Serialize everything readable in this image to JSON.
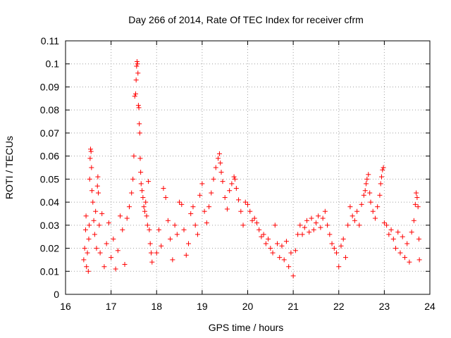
{
  "chart_data": {
    "type": "scatter",
    "title": "Day 266 of 2014, Rate Of TEC Index for receiver cfrm",
    "xlabel": "GPS time / hours",
    "ylabel": "ROTI / TECUs",
    "xlim": [
      16,
      24
    ],
    "ylim": [
      0,
      0.11
    ],
    "x_ticks": [
      "16",
      "17",
      "18",
      "19",
      "20",
      "21",
      "22",
      "23",
      "24"
    ],
    "y_ticks": [
      "0",
      "0.01",
      "0.02",
      "0.03",
      "0.04",
      "0.05",
      "0.06",
      "0.07",
      "0.08",
      "0.09",
      "0.1",
      "0.11"
    ],
    "grid": true,
    "marker": "+",
    "color": "#ff0000",
    "series": [
      {
        "name": "ROTI",
        "points": [
          [
            16.4,
            0.015
          ],
          [
            16.42,
            0.02
          ],
          [
            16.44,
            0.028
          ],
          [
            16.45,
            0.034
          ],
          [
            16.46,
            0.012
          ],
          [
            16.48,
            0.018
          ],
          [
            16.5,
            0.01
          ],
          [
            16.51,
            0.024
          ],
          [
            16.52,
            0.03
          ],
          [
            16.53,
            0.05
          ],
          [
            16.54,
            0.059
          ],
          [
            16.55,
            0.063
          ],
          [
            16.56,
            0.062
          ],
          [
            16.57,
            0.055
          ],
          [
            16.58,
            0.045
          ],
          [
            16.6,
            0.04
          ],
          [
            16.62,
            0.032
          ],
          [
            16.64,
            0.026
          ],
          [
            16.66,
            0.036
          ],
          [
            16.68,
            0.02
          ],
          [
            16.7,
            0.047
          ],
          [
            16.71,
            0.051
          ],
          [
            16.72,
            0.044
          ],
          [
            16.74,
            0.03
          ],
          [
            16.76,
            0.018
          ],
          [
            16.8,
            0.035
          ],
          [
            16.85,
            0.012
          ],
          [
            16.9,
            0.022
          ],
          [
            16.95,
            0.031
          ],
          [
            17.0,
            0.016
          ],
          [
            17.05,
            0.024
          ],
          [
            17.1,
            0.011
          ],
          [
            17.15,
            0.019
          ],
          [
            17.2,
            0.034
          ],
          [
            17.25,
            0.028
          ],
          [
            17.3,
            0.013
          ],
          [
            17.35,
            0.033
          ],
          [
            17.4,
            0.038
          ],
          [
            17.45,
            0.044
          ],
          [
            17.48,
            0.05
          ],
          [
            17.5,
            0.06
          ],
          [
            17.52,
            0.086
          ],
          [
            17.54,
            0.087
          ],
          [
            17.55,
            0.093
          ],
          [
            17.56,
            0.099
          ],
          [
            17.57,
            0.101
          ],
          [
            17.58,
            0.1
          ],
          [
            17.59,
            0.096
          ],
          [
            17.6,
            0.082
          ],
          [
            17.61,
            0.081
          ],
          [
            17.62,
            0.074
          ],
          [
            17.63,
            0.07
          ],
          [
            17.64,
            0.059
          ],
          [
            17.65,
            0.053
          ],
          [
            17.66,
            0.048
          ],
          [
            17.68,
            0.045
          ],
          [
            17.7,
            0.042
          ],
          [
            17.72,
            0.038
          ],
          [
            17.74,
            0.036
          ],
          [
            17.76,
            0.04
          ],
          [
            17.78,
            0.034
          ],
          [
            17.8,
            0.03
          ],
          [
            17.82,
            0.049
          ],
          [
            17.84,
            0.028
          ],
          [
            17.86,
            0.022
          ],
          [
            17.88,
            0.018
          ],
          [
            17.9,
            0.014
          ],
          [
            18.0,
            0.018
          ],
          [
            18.05,
            0.028
          ],
          [
            18.1,
            0.021
          ],
          [
            18.15,
            0.046
          ],
          [
            18.2,
            0.042
          ],
          [
            18.25,
            0.032
          ],
          [
            18.3,
            0.024
          ],
          [
            18.35,
            0.015
          ],
          [
            18.4,
            0.03
          ],
          [
            18.45,
            0.026
          ],
          [
            18.5,
            0.04
          ],
          [
            18.55,
            0.039
          ],
          [
            18.6,
            0.028
          ],
          [
            18.65,
            0.017
          ],
          [
            18.7,
            0.022
          ],
          [
            18.75,
            0.035
          ],
          [
            18.8,
            0.038
          ],
          [
            18.85,
            0.03
          ],
          [
            18.9,
            0.026
          ],
          [
            18.95,
            0.043
          ],
          [
            19.0,
            0.048
          ],
          [
            19.05,
            0.036
          ],
          [
            19.1,
            0.031
          ],
          [
            19.15,
            0.038
          ],
          [
            19.2,
            0.044
          ],
          [
            19.25,
            0.05
          ],
          [
            19.3,
            0.055
          ],
          [
            19.35,
            0.059
          ],
          [
            19.38,
            0.061
          ],
          [
            19.4,
            0.057
          ],
          [
            19.42,
            0.053
          ],
          [
            19.45,
            0.049
          ],
          [
            19.5,
            0.042
          ],
          [
            19.55,
            0.037
          ],
          [
            19.6,
            0.045
          ],
          [
            19.65,
            0.048
          ],
          [
            19.7,
            0.051
          ],
          [
            19.72,
            0.05
          ],
          [
            19.75,
            0.046
          ],
          [
            19.8,
            0.041
          ],
          [
            19.85,
            0.036
          ],
          [
            19.9,
            0.03
          ],
          [
            19.95,
            0.04
          ],
          [
            20.0,
            0.039
          ],
          [
            20.05,
            0.036
          ],
          [
            20.1,
            0.032
          ],
          [
            20.15,
            0.033
          ],
          [
            20.2,
            0.031
          ],
          [
            20.25,
            0.028
          ],
          [
            20.3,
            0.025
          ],
          [
            20.35,
            0.026
          ],
          [
            20.4,
            0.022
          ],
          [
            20.45,
            0.024
          ],
          [
            20.5,
            0.02
          ],
          [
            20.55,
            0.018
          ],
          [
            20.6,
            0.03
          ],
          [
            20.65,
            0.022
          ],
          [
            20.7,
            0.016
          ],
          [
            20.75,
            0.021
          ],
          [
            20.8,
            0.015
          ],
          [
            20.85,
            0.023
          ],
          [
            20.9,
            0.012
          ],
          [
            20.95,
            0.018
          ],
          [
            21.0,
            0.008
          ],
          [
            21.05,
            0.019
          ],
          [
            21.1,
            0.026
          ],
          [
            21.15,
            0.03
          ],
          [
            21.2,
            0.026
          ],
          [
            21.25,
            0.029
          ],
          [
            21.3,
            0.032
          ],
          [
            21.35,
            0.027
          ],
          [
            21.4,
            0.033
          ],
          [
            21.45,
            0.028
          ],
          [
            21.5,
            0.031
          ],
          [
            21.55,
            0.034
          ],
          [
            21.6,
            0.029
          ],
          [
            21.65,
            0.033
          ],
          [
            21.7,
            0.036
          ],
          [
            21.75,
            0.03
          ],
          [
            21.8,
            0.026
          ],
          [
            21.85,
            0.022
          ],
          [
            21.9,
            0.02
          ],
          [
            21.95,
            0.018
          ],
          [
            22.0,
            0.012
          ],
          [
            22.05,
            0.021
          ],
          [
            22.1,
            0.024
          ],
          [
            22.15,
            0.016
          ],
          [
            22.2,
            0.03
          ],
          [
            22.25,
            0.038
          ],
          [
            22.3,
            0.034
          ],
          [
            22.35,
            0.032
          ],
          [
            22.4,
            0.036
          ],
          [
            22.45,
            0.03
          ],
          [
            22.5,
            0.039
          ],
          [
            22.55,
            0.043
          ],
          [
            22.58,
            0.045
          ],
          [
            22.6,
            0.048
          ],
          [
            22.62,
            0.05
          ],
          [
            22.65,
            0.052
          ],
          [
            22.68,
            0.044
          ],
          [
            22.7,
            0.04
          ],
          [
            22.75,
            0.036
          ],
          [
            22.8,
            0.033
          ],
          [
            22.85,
            0.038
          ],
          [
            22.9,
            0.043
          ],
          [
            22.92,
            0.048
          ],
          [
            22.94,
            0.051
          ],
          [
            22.96,
            0.054
          ],
          [
            22.98,
            0.055
          ],
          [
            23.0,
            0.031
          ],
          [
            23.05,
            0.03
          ],
          [
            23.1,
            0.026
          ],
          [
            23.15,
            0.028
          ],
          [
            23.2,
            0.024
          ],
          [
            23.25,
            0.02
          ],
          [
            23.3,
            0.027
          ],
          [
            23.35,
            0.018
          ],
          [
            23.4,
            0.025
          ],
          [
            23.45,
            0.016
          ],
          [
            23.5,
            0.022
          ],
          [
            23.55,
            0.014
          ],
          [
            23.6,
            0.027
          ],
          [
            23.65,
            0.032
          ],
          [
            23.68,
            0.039
          ],
          [
            23.7,
            0.044
          ],
          [
            23.72,
            0.042
          ],
          [
            23.74,
            0.038
          ],
          [
            23.76,
            0.024
          ],
          [
            23.77,
            0.015
          ]
        ]
      }
    ]
  }
}
